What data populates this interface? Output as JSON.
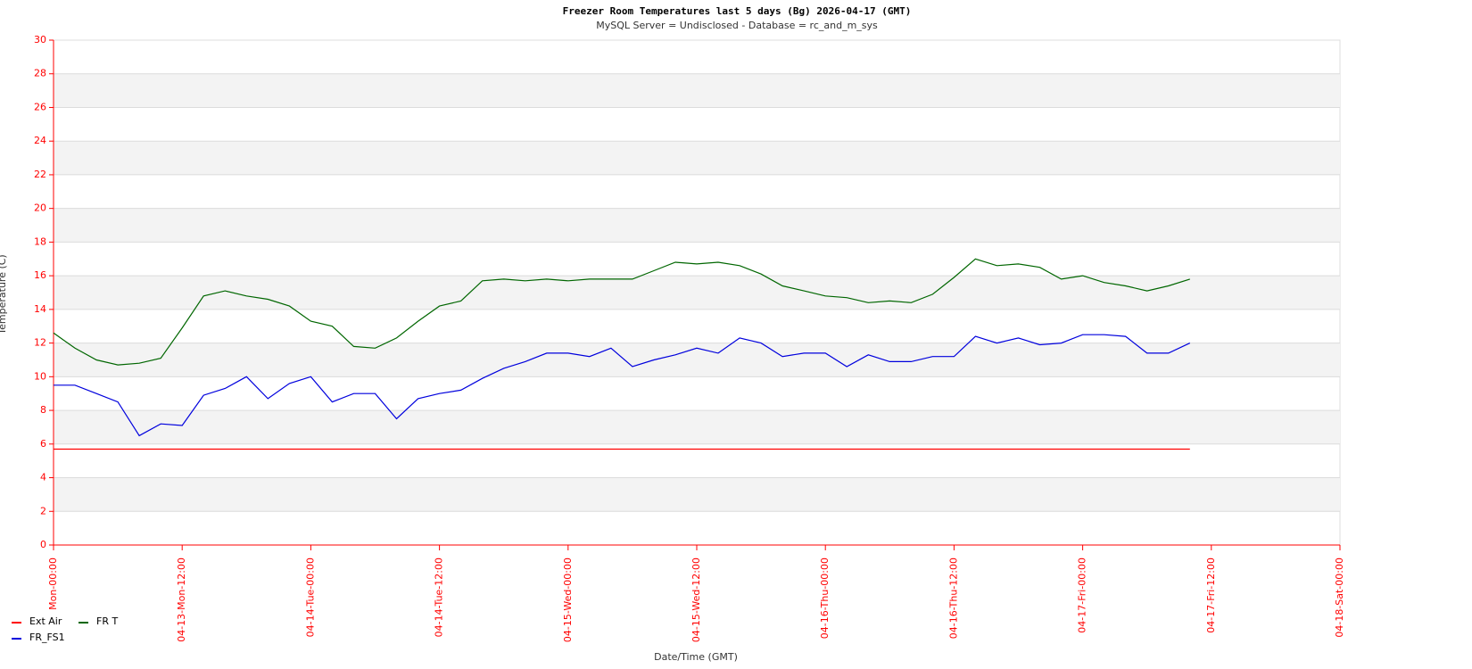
{
  "chart_data": {
    "type": "line",
    "title": "Freezer Room Temperatures last 5     days (Bg) 2026-04-17 (GMT)",
    "subtitle": "MySQL Server = Undisclosed - Database = rc_and_m_sys",
    "x_label": "Date/Time (GMT)",
    "y_label": "Temperature (C)",
    "x": [
      0,
      2,
      4,
      6,
      8,
      10,
      12,
      14,
      16,
      18,
      20,
      22,
      24,
      26,
      28,
      30,
      32,
      34,
      36,
      38,
      40,
      42,
      44,
      46,
      48,
      50,
      52,
      54,
      56,
      58,
      60,
      62,
      64,
      66,
      68,
      70,
      72,
      74,
      76,
      78,
      80,
      82,
      84,
      86,
      88,
      90,
      92,
      94,
      96,
      98,
      100,
      102,
      104,
      106
    ],
    "series": [
      {
        "name": "Ext Air",
        "color": "#ff0000",
        "values": [
          5.7,
          5.7,
          5.7,
          5.7,
          5.7,
          5.7,
          5.7,
          5.7,
          5.7,
          5.7,
          5.7,
          5.7,
          5.7,
          5.7,
          5.7,
          5.7,
          5.7,
          5.7,
          5.7,
          5.7,
          5.7,
          5.7,
          5.7,
          5.7,
          5.7,
          5.7,
          5.7,
          5.7,
          5.7,
          5.7,
          5.7,
          5.7,
          5.7,
          5.7,
          5.7,
          5.7,
          5.7,
          5.7,
          5.7,
          5.7,
          5.7,
          5.7,
          5.7,
          5.7,
          5.7,
          5.7,
          5.7,
          5.7,
          5.7,
          5.7,
          5.7,
          5.7,
          5.7,
          5.7
        ]
      },
      {
        "name": "FR_FS1",
        "color": "#0000dd",
        "values": [
          9.5,
          9.5,
          9.0,
          8.5,
          6.5,
          7.2,
          7.1,
          8.9,
          9.3,
          10.0,
          8.7,
          9.6,
          10.0,
          8.5,
          9.0,
          9.0,
          7.5,
          8.7,
          9.0,
          9.2,
          9.9,
          10.5,
          10.9,
          11.4,
          11.4,
          11.2,
          11.7,
          10.6,
          11.0,
          11.3,
          11.7,
          11.4,
          12.3,
          12.0,
          11.2,
          11.4,
          11.4,
          10.6,
          11.3,
          10.9,
          10.9,
          11.2,
          11.2,
          12.4,
          12.0,
          12.3,
          11.9,
          12.0,
          12.5,
          12.5,
          12.4,
          11.4,
          11.4,
          12.0
        ]
      },
      {
        "name": "FR T",
        "color": "#006600",
        "values": [
          12.6,
          11.7,
          11.0,
          10.7,
          10.8,
          11.1,
          12.9,
          14.8,
          15.1,
          14.8,
          14.6,
          14.2,
          13.3,
          13.0,
          11.8,
          11.7,
          12.3,
          13.3,
          14.2,
          14.5,
          15.7,
          15.8,
          15.7,
          15.8,
          15.7,
          15.8,
          15.8,
          15.8,
          16.3,
          16.8,
          16.7,
          16.8,
          16.6,
          16.1,
          15.4,
          15.1,
          14.8,
          14.7,
          14.4,
          14.5,
          14.4,
          14.9,
          15.9,
          17.0,
          16.6,
          16.7,
          16.5,
          15.8,
          16.0,
          15.6,
          15.4,
          15.1,
          15.4,
          15.8
        ]
      }
    ],
    "xlim": [
      0,
      120
    ],
    "xticks": [
      {
        "value": 0,
        "label": "Mon-00:00"
      },
      {
        "value": 12,
        "label": "04-13-Mon-12:00"
      },
      {
        "value": 24,
        "label": "04-14-Tue-00:00"
      },
      {
        "value": 36,
        "label": "04-14-Tue-12:00"
      },
      {
        "value": 48,
        "label": "04-15-Wed-00:00"
      },
      {
        "value": 60,
        "label": "04-15-Wed-12:00"
      },
      {
        "value": 72,
        "label": "04-16-Thu-00:00"
      },
      {
        "value": 84,
        "label": "04-16-Thu-12:00"
      },
      {
        "value": 96,
        "label": "04-17-Fri-00:00"
      },
      {
        "value": 108,
        "label": "04-17-Fri-12:00"
      },
      {
        "value": 120,
        "label": "04-18-Sat-00:00"
      }
    ],
    "ylim": [
      0,
      30
    ],
    "yticks": [
      0,
      2,
      4,
      6,
      8,
      10,
      12,
      14,
      16,
      18,
      20,
      22,
      24,
      26,
      28,
      30
    ],
    "grid": true,
    "axis_color": "#ff0000",
    "legend": "bottom-left"
  }
}
